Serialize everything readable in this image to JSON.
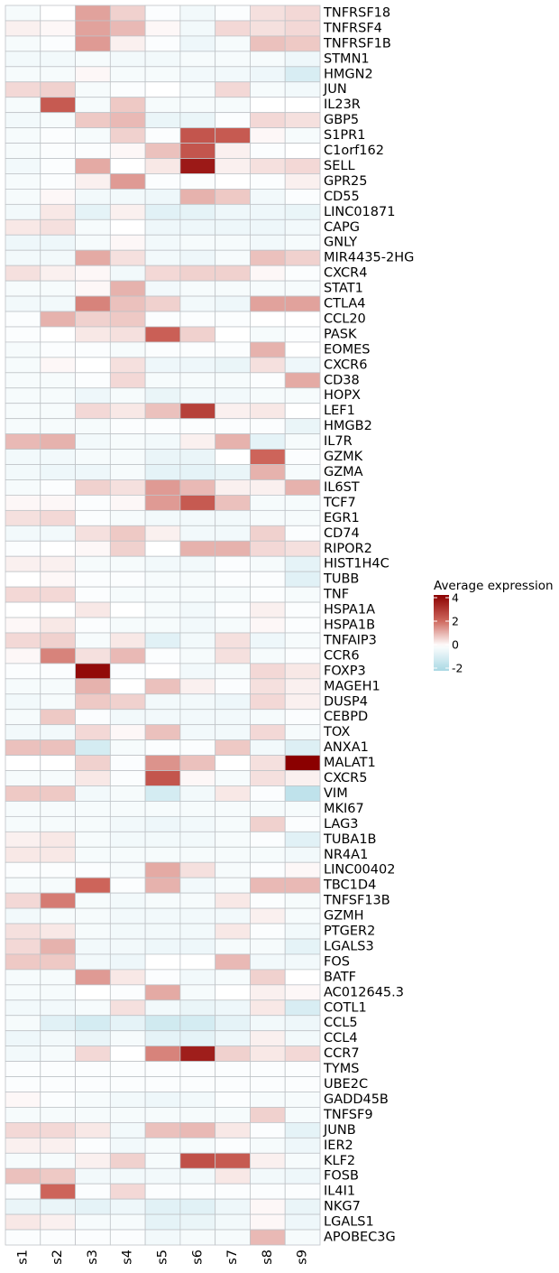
{
  "chart_data": {
    "type": "heatmap",
    "title": "",
    "xlabel": "",
    "ylabel": "",
    "columns": [
      "s1",
      "s2",
      "s3",
      "s4",
      "s5",
      "s6",
      "s7",
      "s8",
      "s9"
    ],
    "rows": [
      "TNFRSF18",
      "TNFRSF4",
      "TNFRSF1B",
      "STMN1",
      "HMGN2",
      "JUN",
      "IL23R",
      "GBP5",
      "S1PR1",
      "C1orf162",
      "SELL",
      "GPR25",
      "CD55",
      "LINC01871",
      "CAPG",
      "GNLY",
      "MIR4435-2HG",
      "CXCR4",
      "STAT1",
      "CTLA4",
      "CCL20",
      "PASK",
      "EOMES",
      "CXCR6",
      "CD38",
      "HOPX",
      "LEF1",
      "HMGB2",
      "IL7R",
      "GZMK",
      "GZMA",
      "IL6ST",
      "TCF7",
      "EGR1",
      "CD74",
      "RIPOR2",
      "HIST1H4C",
      "TUBB",
      "TNF",
      "HSPA1A",
      "HSPA1B",
      "TNFAIP3",
      "CCR6",
      "FOXP3",
      "MAGEH1",
      "DUSP4",
      "CEBPD",
      "TOX",
      "ANXA1",
      "MALAT1",
      "CXCR5",
      "VIM",
      "MKI67",
      "LAG3",
      "TUBA1B",
      "NR4A1",
      "LINC00402",
      "TBC1D4",
      "TNFSF13B",
      "GZMH",
      "PTGER2",
      "LGALS3",
      "FOS",
      "BATF",
      "AC012645.3",
      "COTL1",
      "CCL5",
      "CCL4",
      "CCR7",
      "TYMS",
      "UBE2C",
      "GADD45B",
      "TNFSF9",
      "JUNB",
      "IER2",
      "KLF2",
      "FOSB",
      "IL4I1",
      "NKG7",
      "LGALS1",
      "APOBEC3G"
    ],
    "values": [
      [
        -0.2,
        0,
        1.2,
        0.6,
        -0.1,
        -0.3,
        -0.1,
        0.4,
        0.5
      ],
      [
        0.2,
        0.1,
        1.2,
        0.9,
        0.1,
        -0.3,
        0.5,
        0.4,
        0.5
      ],
      [
        -0.2,
        -0.1,
        1.3,
        0.2,
        -0.1,
        -0.4,
        -0.2,
        0.8,
        0.7
      ],
      [
        -0.3,
        -0.3,
        -0.2,
        -0.3,
        -0.3,
        -0.2,
        -0.2,
        -0.2,
        -0.4
      ],
      [
        -0.2,
        -0.2,
        0.1,
        -0.2,
        -0.2,
        -0.3,
        -0.3,
        -0.4,
        -0.9
      ],
      [
        0.5,
        0.6,
        -0.2,
        -0.1,
        0,
        -0.2,
        0.5,
        -0.2,
        -0.3
      ],
      [
        -0.2,
        2.2,
        -0.2,
        0.7,
        -0.2,
        -0.2,
        -0.2,
        0,
        0
      ],
      [
        -0.3,
        -0.2,
        0.7,
        0.9,
        -0.5,
        -0.5,
        -0.1,
        0.5,
        0.4
      ],
      [
        -0.2,
        -0.1,
        -0.2,
        0.6,
        -0.1,
        2.3,
        2.2,
        0.1,
        -0.2
      ],
      [
        -0.2,
        -0.1,
        -0.1,
        0.1,
        0.8,
        2.3,
        0.2,
        -0.1,
        0
      ],
      [
        -0.3,
        -0.1,
        1.1,
        0,
        0.3,
        3.5,
        0.2,
        0.4,
        0.5
      ],
      [
        -0.2,
        -0.1,
        0.2,
        1.3,
        -0.1,
        -0.1,
        0,
        -0.1,
        0.2
      ],
      [
        -0.2,
        0.1,
        -0.3,
        -0.3,
        -0.4,
        1.0,
        0.7,
        -0.3,
        -0.1
      ],
      [
        -0.3,
        0.3,
        -0.6,
        0.2,
        -0.7,
        -0.6,
        -0.4,
        -0.4,
        -0.5
      ],
      [
        0.3,
        0.4,
        -0.2,
        0,
        -0.4,
        -0.4,
        -0.4,
        -0.4,
        -0.3
      ],
      [
        -0.4,
        -0.4,
        -0.2,
        0.1,
        -0.3,
        -0.2,
        -0.2,
        -0.3,
        -0.2
      ],
      [
        -0.3,
        -0.3,
        1.1,
        0.4,
        -0.3,
        -0.4,
        -0.2,
        0.8,
        0.6
      ],
      [
        0.4,
        0.2,
        0.1,
        -0.3,
        0.5,
        0.6,
        0.6,
        0.1,
        -0.1
      ],
      [
        -0.2,
        -0.2,
        0.1,
        1.0,
        -0.3,
        -0.2,
        -0.2,
        -0.2,
        -0.2
      ],
      [
        -0.3,
        -0.3,
        1.6,
        0.8,
        0.6,
        -0.3,
        -0.4,
        1.2,
        1.2
      ],
      [
        -0.1,
        1.0,
        0.6,
        0.7,
        -0.1,
        -0.1,
        -0.1,
        0,
        0
      ],
      [
        -0.1,
        0,
        0.3,
        0.4,
        2.1,
        0.6,
        0,
        -0.2,
        -0.1
      ],
      [
        -0.2,
        -0.1,
        -0.1,
        -0.2,
        -0.1,
        -0.1,
        -0.1,
        1.0,
        0
      ],
      [
        -0.2,
        0.1,
        0,
        0.4,
        -0.4,
        -0.4,
        -0.5,
        0.4,
        -0.4
      ],
      [
        -0.2,
        -0.2,
        -0.1,
        0.5,
        -0.2,
        -0.2,
        -0.2,
        -0.1,
        1.1
      ],
      [
        -0.2,
        -0.2,
        -0.4,
        -0.2,
        -0.5,
        -0.3,
        -0.3,
        -0.2,
        -0.2
      ],
      [
        -0.2,
        -0.2,
        0.5,
        0.3,
        0.8,
        2.7,
        0.2,
        0.3,
        0
      ],
      [
        -0.2,
        -0.2,
        -0.2,
        -0.1,
        -0.1,
        -0.1,
        -0.1,
        -0.1,
        -0.5
      ],
      [
        0.9,
        1.0,
        -0.3,
        -0.2,
        -0.3,
        0.2,
        1.0,
        -0.6,
        -0.2
      ],
      [
        -0.3,
        -0.3,
        -0.2,
        -0.2,
        -0.5,
        -0.5,
        0,
        2.0,
        -0.1
      ],
      [
        -0.3,
        -0.4,
        -0.4,
        -0.2,
        -0.6,
        -0.6,
        -0.5,
        1.0,
        -0.2
      ],
      [
        -0.2,
        -0.1,
        0.6,
        0.4,
        1.3,
        0.9,
        0.2,
        0.2,
        1.0
      ],
      [
        0.1,
        0.1,
        -0.1,
        0.1,
        1.3,
        2.2,
        0.8,
        -0.2,
        -0.2
      ],
      [
        0.4,
        0.5,
        -0.1,
        -0.2,
        -0.3,
        -0.3,
        -0.3,
        -0.2,
        -0.2
      ],
      [
        -0.3,
        -0.3,
        0.4,
        0.7,
        0.2,
        -0.3,
        -0.3,
        0.6,
        -0.1
      ],
      [
        -0.1,
        0,
        0.1,
        0.6,
        0,
        1.0,
        1.0,
        0.5,
        0.4
      ],
      [
        0.2,
        0.2,
        -0.2,
        -0.2,
        -0.3,
        -0.3,
        -0.1,
        -0.2,
        -0.6
      ],
      [
        0,
        0.1,
        -0.1,
        -0.1,
        -0.2,
        -0.2,
        -0.1,
        -0.1,
        -0.7
      ],
      [
        0.5,
        0.5,
        -0.1,
        -0.2,
        -0.2,
        -0.2,
        -0.2,
        -0.1,
        -0.2
      ],
      [
        0,
        0,
        0.3,
        0,
        -0.2,
        -0.3,
        -0.1,
        0.2,
        -0.1
      ],
      [
        0.1,
        0.3,
        -0.1,
        -0.2,
        -0.2,
        -0.3,
        -0.2,
        0.1,
        -0.1
      ],
      [
        0.5,
        0.6,
        -0.2,
        0.3,
        -0.7,
        -0.3,
        0.4,
        -0.4,
        -0.2
      ],
      [
        0.1,
        1.6,
        0.4,
        0.9,
        -0.1,
        -0.2,
        0.4,
        -0.2,
        -0.1
      ],
      [
        -0.1,
        -0.1,
        3.8,
        -0.1,
        0,
        -0.3,
        -0.2,
        0.5,
        0.3
      ],
      [
        -0.2,
        -0.2,
        1.0,
        0,
        0.8,
        0.2,
        -0.1,
        0.4,
        0.2
      ],
      [
        -0.3,
        -0.2,
        0.7,
        0.6,
        -0.3,
        -0.3,
        -0.4,
        0.5,
        0.2
      ],
      [
        -0.2,
        0.7,
        -0.1,
        -0.3,
        -0.3,
        -0.3,
        -0.3,
        -0.2,
        -0.1
      ],
      [
        -0.3,
        -0.3,
        0.5,
        0.1,
        0.8,
        -0.3,
        -0.3,
        0.5,
        -0.2
      ],
      [
        0.8,
        0.8,
        -1.0,
        -0.2,
        -0.1,
        -0.1,
        0.7,
        -0.3,
        -0.8
      ],
      [
        0,
        0,
        0.6,
        -0.1,
        1.4,
        0.8,
        0,
        0.4,
        4.2
      ],
      [
        -0.2,
        -0.2,
        0.3,
        -0.1,
        2.3,
        0.1,
        -0.2,
        0.4,
        0.2
      ],
      [
        0.7,
        0.7,
        -0.3,
        -0.2,
        -1.0,
        -0.3,
        0.3,
        -0.1,
        -1.5
      ],
      [
        -0.2,
        -0.2,
        -0.2,
        -0.2,
        -0.2,
        -0.2,
        -0.2,
        -0.2,
        -0.2
      ],
      [
        -0.2,
        -0.2,
        -0.2,
        -0.3,
        -0.4,
        -0.3,
        -0.2,
        0.6,
        -0.1
      ],
      [
        0.2,
        0.3,
        -0.2,
        -0.3,
        -0.3,
        -0.3,
        -0.2,
        -0.1,
        -0.7
      ],
      [
        0.3,
        0.3,
        -0.2,
        -0.2,
        -0.2,
        -0.2,
        -0.2,
        -0.2,
        -0.3
      ],
      [
        -0.1,
        -0.1,
        -0.1,
        -0.2,
        1.1,
        0.4,
        -0.2,
        -0.1,
        0.1
      ],
      [
        -0.2,
        -0.2,
        2.0,
        -0.1,
        1.0,
        -0.3,
        -0.2,
        0.9,
        0.9
      ],
      [
        0.5,
        1.7,
        -0.2,
        -0.3,
        -0.2,
        -0.2,
        0.3,
        -0.1,
        -0.2
      ],
      [
        -0.3,
        -0.2,
        -0.2,
        -0.3,
        -0.3,
        -0.3,
        -0.3,
        0.2,
        -0.2
      ],
      [
        0.4,
        0.3,
        -0.2,
        -0.3,
        -0.3,
        -0.3,
        0.3,
        -0.1,
        -0.3
      ],
      [
        0.5,
        1.0,
        -0.3,
        -0.3,
        -0.4,
        -0.4,
        -0.2,
        -0.2,
        -0.6
      ],
      [
        0.7,
        0.7,
        -0.3,
        -0.4,
        0,
        0,
        0.9,
        -0.3,
        -0.3
      ],
      [
        -0.2,
        -0.2,
        1.3,
        0.3,
        -0.1,
        -0.3,
        -0.2,
        0.6,
        0
      ],
      [
        -0.2,
        -0.2,
        0,
        -0.1,
        1.1,
        -0.2,
        0,
        0.2,
        0.1
      ],
      [
        -0.3,
        -0.3,
        -0.2,
        0.4,
        -0.3,
        -0.5,
        -0.4,
        0.3,
        -0.9
      ],
      [
        -0.2,
        -0.7,
        -1.0,
        -0.6,
        -1.1,
        -1.0,
        -0.6,
        -0.3,
        -0.4
      ],
      [
        -0.4,
        -0.3,
        -0.5,
        -0.2,
        -0.6,
        -0.6,
        -0.4,
        0.2,
        -0.3
      ],
      [
        -0.3,
        -0.2,
        0.5,
        0,
        1.6,
        3.4,
        0.6,
        0.3,
        0.5
      ],
      [
        -0.1,
        -0.1,
        -0.1,
        -0.1,
        -0.1,
        -0.1,
        -0.1,
        -0.1,
        -0.1
      ],
      [
        -0.1,
        -0.1,
        -0.1,
        -0.1,
        -0.1,
        -0.1,
        -0.1,
        -0.1,
        -0.1
      ],
      [
        0.1,
        -0.1,
        -0.2,
        -0.3,
        -0.4,
        -0.3,
        -0.1,
        -0.2,
        -0.2
      ],
      [
        -0.2,
        -0.2,
        -0.2,
        -0.2,
        -0.2,
        -0.2,
        -0.2,
        0.6,
        -0.2
      ],
      [
        0.5,
        0.5,
        0.3,
        -0.3,
        0.8,
        0.9,
        0.3,
        -0.1,
        -0.6
      ],
      [
        0.2,
        0.2,
        -0.1,
        -0.3,
        -0.2,
        -0.2,
        -0.1,
        -0.2,
        -0.4
      ],
      [
        -0.2,
        -0.2,
        0.2,
        0.6,
        -0.2,
        2.4,
        2.2,
        0.2,
        -0.2
      ],
      [
        0.8,
        0.7,
        -0.3,
        -0.3,
        -0.3,
        -0.3,
        0.3,
        -0.3,
        -0.4
      ],
      [
        -0.1,
        2.0,
        -0.1,
        0.5,
        -0.1,
        -0.1,
        -0.1,
        -0.1,
        -0.1
      ],
      [
        -0.5,
        -0.5,
        -0.6,
        -0.4,
        -0.7,
        -0.7,
        -0.4,
        0.1,
        -0.5
      ],
      [
        0.3,
        0.2,
        -0.2,
        -0.2,
        -0.6,
        -0.5,
        -0.3,
        0.1,
        -0.4
      ],
      [
        -0.1,
        -0.1,
        -0.1,
        -0.1,
        -0.3,
        -0.2,
        -0.2,
        0.9,
        -0.2
      ]
    ],
    "colorscale": {
      "min": -2,
      "mid": 0,
      "max": 4,
      "low_color": "#a9d8e4",
      "mid_color": "#ffffff",
      "high_color": "#8b0000"
    },
    "legend": {
      "title": "Average expression",
      "ticks": [
        4,
        2,
        0,
        -2
      ],
      "placement": "right"
    },
    "grid_color": "#c0c4c8"
  }
}
